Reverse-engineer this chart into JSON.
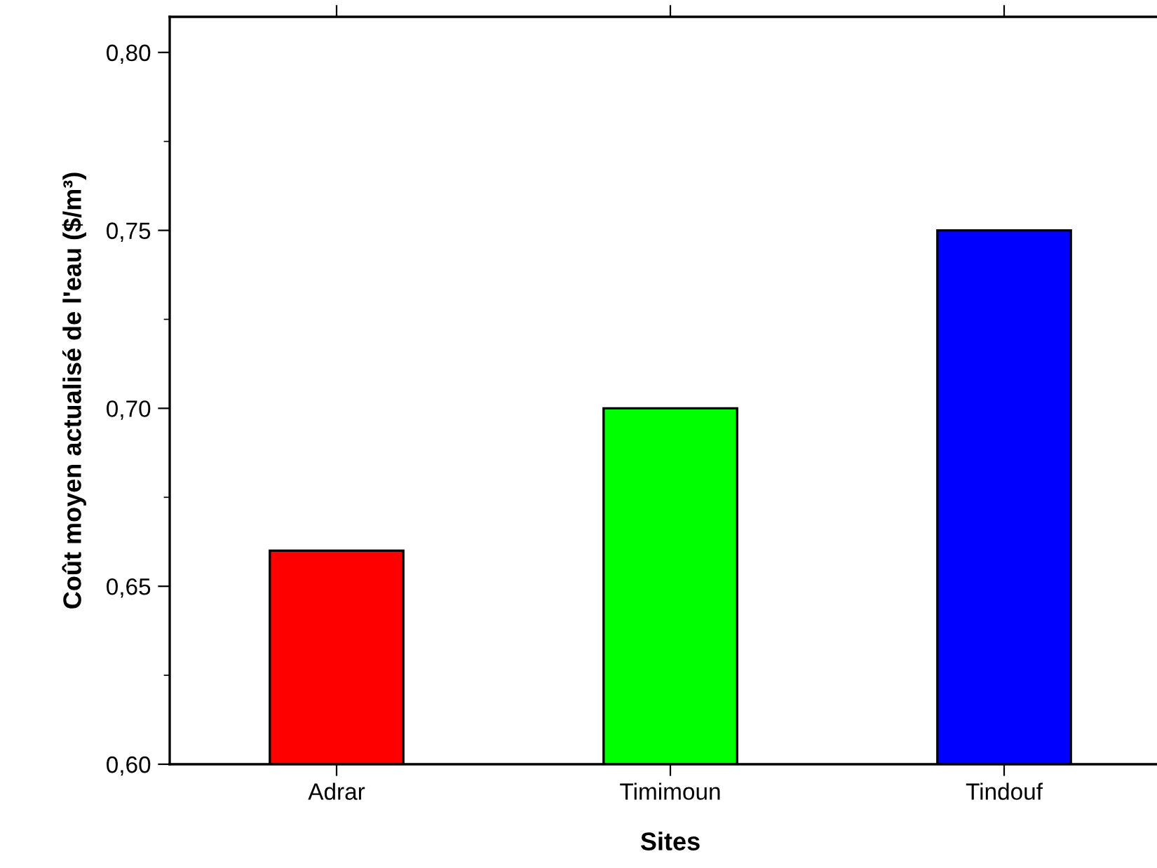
{
  "chart_data": {
    "type": "bar",
    "xlabel": "Sites",
    "ylabel": "Coût moyen actualisé de l'eau ($/m³)",
    "categories": [
      "Adrar",
      "Timimoun",
      "Tindouf"
    ],
    "values": [
      0.66,
      0.7,
      0.75
    ],
    "colors": [
      "#ff0000",
      "#00ff00",
      "#0000ff"
    ],
    "ylim": [
      0.6,
      0.81
    ],
    "yticks": [
      {
        "value": 0.6,
        "label": "0,60"
      },
      {
        "value": 0.65,
        "label": "0,65"
      },
      {
        "value": 0.7,
        "label": "0,70"
      },
      {
        "value": 0.75,
        "label": "0,75"
      },
      {
        "value": 0.8,
        "label": "0,80"
      }
    ],
    "grid": false,
    "legend": false
  }
}
